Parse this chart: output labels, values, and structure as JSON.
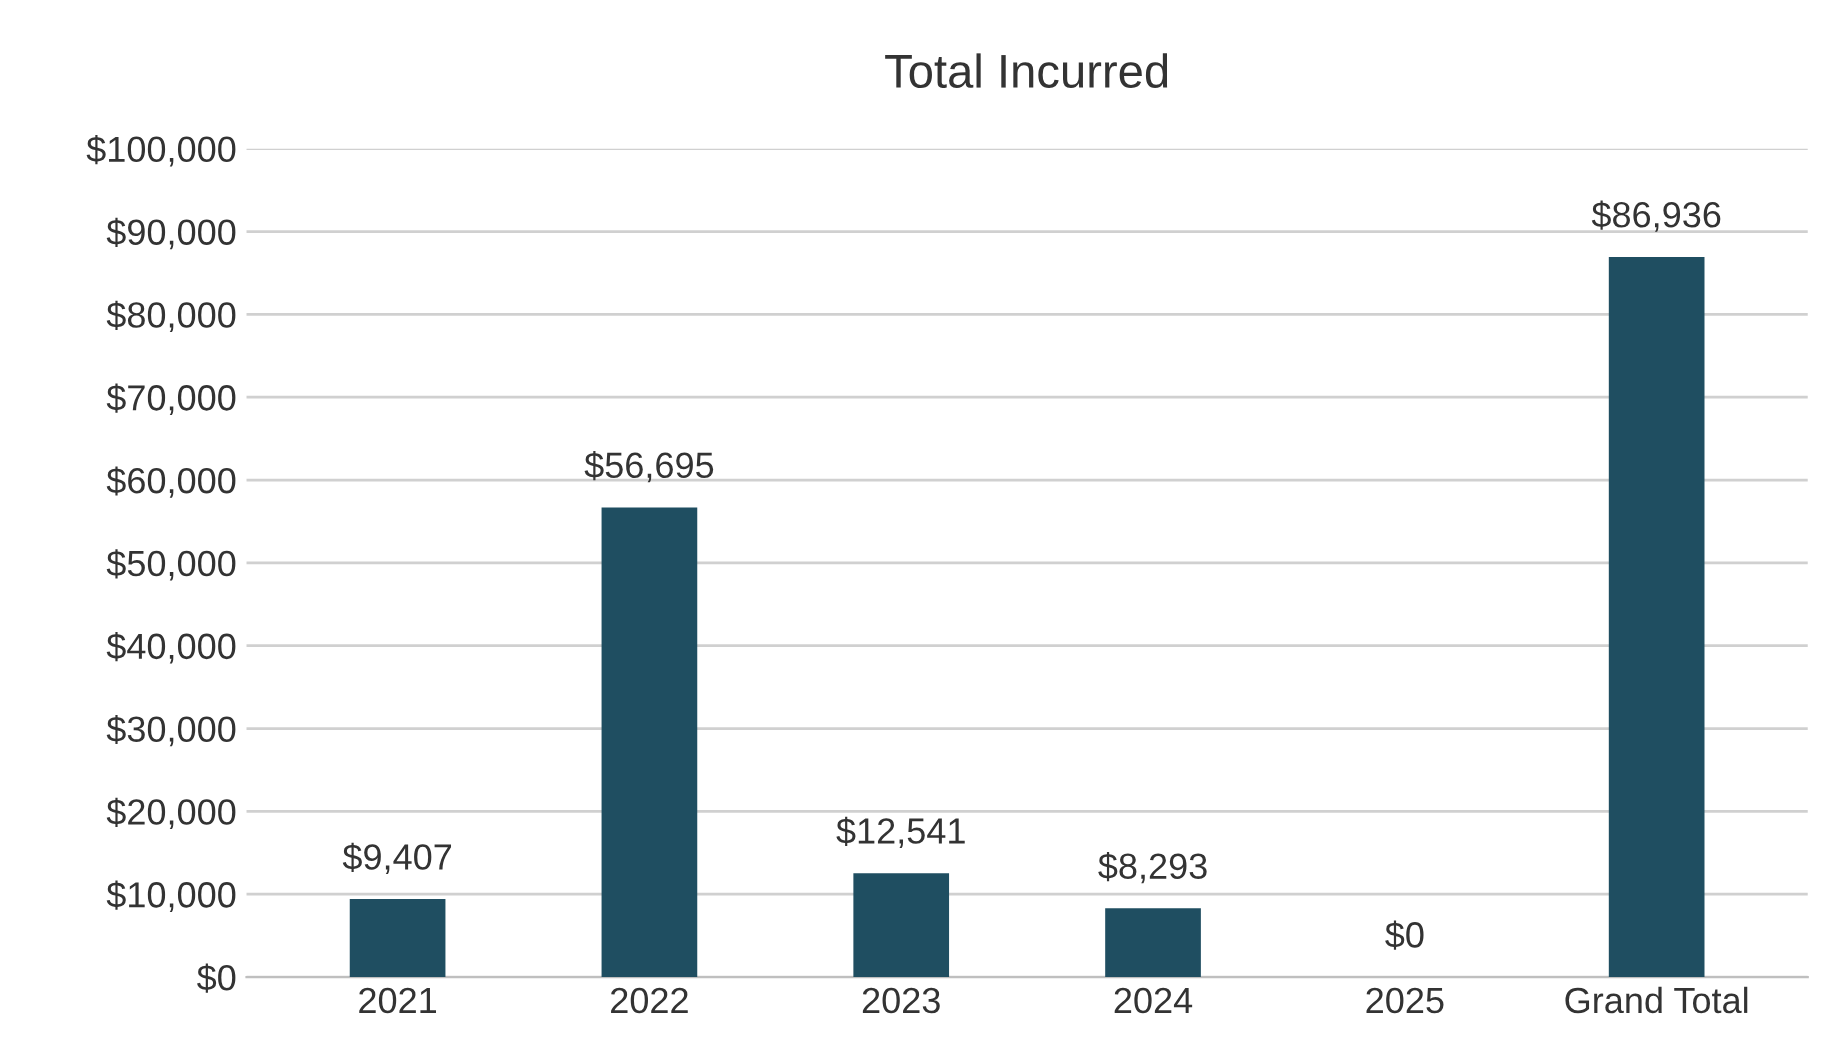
{
  "chart_data": {
    "type": "bar",
    "title": "Total Incurred",
    "categories": [
      "2021",
      "2022",
      "2023",
      "2024",
      "2025",
      "Grand Total"
    ],
    "values": [
      9407,
      56695,
      12541,
      8293,
      0,
      86936
    ],
    "value_labels": [
      "$9,407",
      "$56,695",
      "$12,541",
      "$8,293",
      "$0",
      "$86,936"
    ],
    "color": "#1f4e61",
    "ylim": [
      0,
      100000
    ],
    "yticks": [
      {
        "value": 0,
        "label": "$0"
      },
      {
        "value": 10000,
        "label": "$10,000"
      },
      {
        "value": 20000,
        "label": "$20,000"
      },
      {
        "value": 30000,
        "label": "$30,000"
      },
      {
        "value": 40000,
        "label": "$40,000"
      },
      {
        "value": 50000,
        "label": "$50,000"
      },
      {
        "value": 60000,
        "label": "$60,000"
      },
      {
        "value": 70000,
        "label": "$70,000"
      },
      {
        "value": 80000,
        "label": "$80,000"
      },
      {
        "value": 90000,
        "label": "$90,000"
      },
      {
        "value": 100000,
        "label": "$100,000"
      }
    ],
    "grid": "y",
    "legend": false
  }
}
